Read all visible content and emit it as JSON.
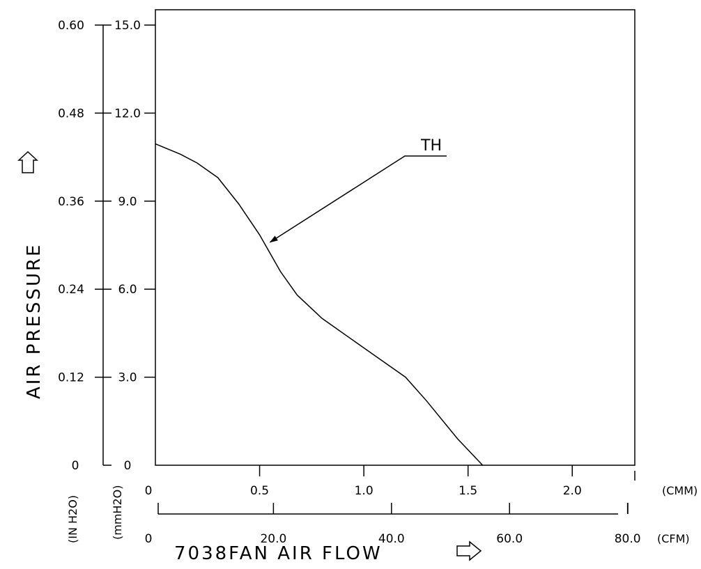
{
  "chart_data": {
    "type": "line",
    "title": "",
    "xlabel": "7038FAN  AIR  FLOW",
    "ylabel": "AIR  PRESSURE",
    "x_units": {
      "primary": "(CMM)",
      "secondary": "(CFM)"
    },
    "y_units": {
      "primary": "(mmH2O)",
      "secondary": "(IN H2O)"
    },
    "xlim": [
      0,
      2.3
    ],
    "ylim": [
      0,
      15.0
    ],
    "x_ticks_primary": [
      {
        "value": 0,
        "label": "0"
      },
      {
        "value": 0.5,
        "label": "0.5"
      },
      {
        "value": 1.0,
        "label": "1.0"
      },
      {
        "value": 1.5,
        "label": "1.5"
      },
      {
        "value": 2.0,
        "label": "2.0"
      }
    ],
    "x_ticks_secondary": [
      {
        "value": 0,
        "label": "0"
      },
      {
        "value": 0.5663,
        "label": "20.0"
      },
      {
        "value": 1.1327,
        "label": "40.0"
      },
      {
        "value": 1.699,
        "label": "60.0"
      },
      {
        "value": 2.2653,
        "label": "80.0"
      }
    ],
    "y_ticks_primary": [
      {
        "value": 0,
        "label": "0"
      },
      {
        "value": 3.0,
        "label": "3.0"
      },
      {
        "value": 6.0,
        "label": "6.0"
      },
      {
        "value": 9.0,
        "label": "9.0"
      },
      {
        "value": 12.0,
        "label": "12.0"
      },
      {
        "value": 15.0,
        "label": "15.0"
      }
    ],
    "y_ticks_secondary": [
      {
        "value": 0,
        "label": "0"
      },
      {
        "value": 3.0,
        "label": "0.12"
      },
      {
        "value": 6.0,
        "label": "0.24"
      },
      {
        "value": 9.0,
        "label": "0.36"
      },
      {
        "value": 12.0,
        "label": "0.48"
      },
      {
        "value": 15.0,
        "label": "0.60"
      }
    ],
    "series": [
      {
        "name": "TH",
        "x": [
          0,
          0.12,
          0.2,
          0.3,
          0.4,
          0.5,
          0.6,
          0.68,
          0.8,
          1.0,
          1.2,
          1.3,
          1.45,
          1.57
        ],
        "y": [
          10.95,
          10.6,
          10.3,
          9.8,
          8.9,
          7.85,
          6.6,
          5.8,
          5.0,
          4.0,
          3.0,
          2.2,
          0.9,
          0.0
        ]
      }
    ],
    "annotations": [
      {
        "text": "TH",
        "target_x": 0.55,
        "target_y": 7.6
      }
    ],
    "grid": false,
    "legend": "none"
  }
}
